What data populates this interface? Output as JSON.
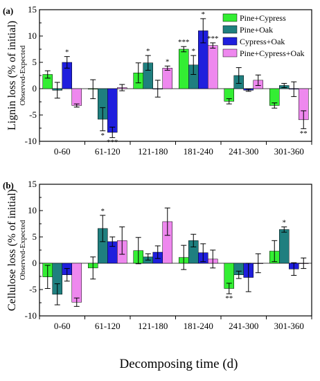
{
  "figure": {
    "xlabel": "Decomposing time (d)"
  },
  "chart_data": [
    {
      "type": "bar",
      "panel_label": "(a)",
      "ylabel": "Lignin loss (% of initial)",
      "ylabel_sub": "Observed-Expected",
      "ylim": [
        -10,
        15
      ],
      "yticks": [
        -10,
        -5,
        0,
        5,
        10,
        15
      ],
      "categories": [
        "0-60",
        "61-120",
        "121-180",
        "181-240",
        "241-300",
        "301-360"
      ],
      "legend": {
        "position": "top-right"
      },
      "series": [
        {
          "name": "Pine+Cypress",
          "color": "#33ee33",
          "values": [
            2.7,
            -0.1,
            3.0,
            7.5,
            -2.4,
            -3.2
          ],
          "errors": [
            0.7,
            1.8,
            1.9,
            0.5,
            0.5,
            0.5
          ],
          "sig": [
            "",
            "",
            "",
            "***",
            "",
            ""
          ]
        },
        {
          "name": "Pine+Oak",
          "color": "#1f7f7f",
          "values": [
            -0.3,
            -5.8,
            4.9,
            4.5,
            2.5,
            0.6
          ],
          "errors": [
            1.5,
            2.2,
            1.4,
            1.8,
            1.5,
            0.4
          ],
          "sig": [
            "",
            "*",
            "*",
            "*",
            "",
            ""
          ]
        },
        {
          "name": "Cypress+Oak",
          "color": "#1f1fdd",
          "values": [
            5.0,
            -8.3,
            0.0,
            11.0,
            -0.3,
            -0.1
          ],
          "errors": [
            1.1,
            1.0,
            1.6,
            2.3,
            0.2,
            1.4
          ],
          "sig": [
            "*",
            "***",
            "",
            "*",
            "",
            ""
          ]
        },
        {
          "name": "Pine+Cypress+Oak",
          "color": "#ee88ee",
          "values": [
            -3.2,
            0.2,
            3.9,
            8.2,
            1.6,
            -5.9
          ],
          "errors": [
            0.3,
            0.6,
            0.4,
            0.5,
            1.0,
            1.7
          ],
          "sig": [
            "",
            "",
            "*",
            "***",
            "",
            "**"
          ]
        }
      ]
    },
    {
      "type": "bar",
      "panel_label": "(b)",
      "ylabel": "Cellulose loss (% of initial)",
      "ylabel_sub": "Observed-Expected",
      "ylim": [
        -10,
        15
      ],
      "yticks": [
        -10,
        -5,
        0,
        5,
        10,
        15
      ],
      "categories": [
        "0-60",
        "61-120",
        "121-180",
        "181-240",
        "241-300",
        "301-360"
      ],
      "series": [
        {
          "name": "Pine+Cypress",
          "color": "#33ee33",
          "values": [
            -2.6,
            -0.9,
            2.4,
            1.1,
            -4.8,
            2.3
          ],
          "errors": [
            2.2,
            2.1,
            2.5,
            2.3,
            1.0,
            2.0
          ],
          "sig": [
            "",
            "",
            "",
            "",
            "**",
            ""
          ]
        },
        {
          "name": "Pine+Oak",
          "color": "#1f7f7f",
          "values": [
            -5.9,
            6.6,
            1.2,
            4.3,
            -2.2,
            6.4
          ],
          "errors": [
            2.0,
            2.5,
            0.6,
            1.2,
            0.7,
            0.5
          ],
          "sig": [
            "",
            "*",
            "",
            "",
            "",
            "*"
          ]
        },
        {
          "name": "Cypress+Oak",
          "color": "#1f1fdd",
          "values": [
            -2.2,
            4.1,
            2.1,
            2.0,
            -2.7,
            -1.1
          ],
          "errors": [
            1.2,
            0.9,
            1.2,
            1.7,
            2.7,
            1.2
          ],
          "sig": [
            "",
            "",
            "",
            "",
            "",
            ""
          ]
        },
        {
          "name": "Pine+Cypress+Oak",
          "color": "#ee88ee",
          "values": [
            -7.4,
            4.3,
            7.9,
            0.8,
            0.0,
            0.0
          ],
          "errors": [
            0.8,
            2.6,
            2.6,
            1.7,
            1.8,
            1.0
          ],
          "sig": [
            "",
            "",
            "",
            "",
            "",
            ""
          ]
        }
      ]
    }
  ]
}
